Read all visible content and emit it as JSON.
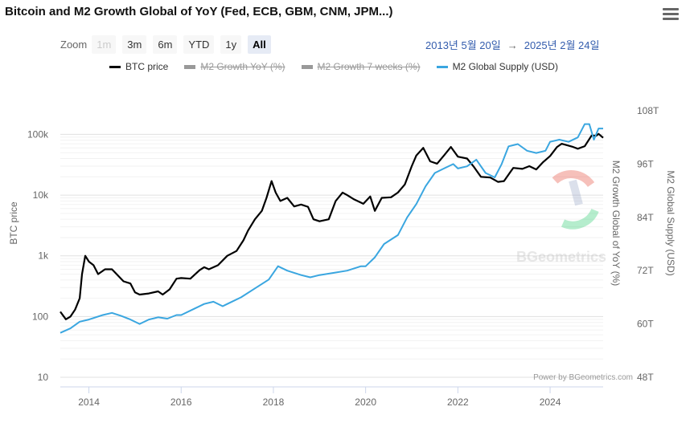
{
  "header": {
    "title": "Bitcoin and M2 Growth Global of YoY (Fed, ECB, GBM, CNM, JPM...)"
  },
  "zoom": {
    "label": "Zoom",
    "buttons": [
      "1m",
      "3m",
      "6m",
      "YTD",
      "1y",
      "All"
    ],
    "active": "All"
  },
  "range": {
    "from": "2013년 5월 20일",
    "arrow": "→",
    "to": "2025년 2월 24일"
  },
  "legend": [
    {
      "name": "BTC price",
      "color": "#000000",
      "visible": true
    },
    {
      "name": "M2 Growth YoY (%)",
      "color": "#999999",
      "visible": false
    },
    {
      "name": "M2 Growth 7 weeks (%)",
      "color": "#999999",
      "visible": false
    },
    {
      "name": "M2 Global Supply (USD)",
      "color": "#3aa6e0",
      "visible": true
    }
  ],
  "watermark": "BGeometrics",
  "credit": "Power by BGeometrics.com",
  "chart_data": {
    "type": "line",
    "x_ticks": [
      "2014",
      "2016",
      "2018",
      "2020",
      "2022",
      "2024"
    ],
    "x_range": [
      2013.38,
      2025.15
    ],
    "left_axis": {
      "title": "BTC price",
      "scale": "log",
      "ticks": [
        "10",
        "100",
        "1k",
        "10k",
        "100k"
      ],
      "range": [
        10,
        170000
      ]
    },
    "right_axis_1": {
      "title": "M2 Growth Global of YoY (%)"
    },
    "right_axis_2": {
      "title": "M2 Global Supply (USD)",
      "ticks": [
        "48T",
        "60T",
        "72T",
        "84T",
        "96T",
        "108T"
      ],
      "range": [
        48,
        108
      ]
    },
    "grid": true,
    "series": [
      {
        "name": "BTC price",
        "axis": "left",
        "color": "#000000",
        "points": [
          [
            2013.38,
            120
          ],
          [
            2013.5,
            90
          ],
          [
            2013.6,
            100
          ],
          [
            2013.7,
            130
          ],
          [
            2013.8,
            200
          ],
          [
            2013.85,
            500
          ],
          [
            2013.92,
            1000
          ],
          [
            2014.0,
            800
          ],
          [
            2014.1,
            700
          ],
          [
            2014.2,
            500
          ],
          [
            2014.35,
            600
          ],
          [
            2014.5,
            600
          ],
          [
            2014.6,
            500
          ],
          [
            2014.75,
            380
          ],
          [
            2014.9,
            350
          ],
          [
            2015.0,
            250
          ],
          [
            2015.1,
            230
          ],
          [
            2015.3,
            240
          ],
          [
            2015.5,
            260
          ],
          [
            2015.6,
            230
          ],
          [
            2015.75,
            280
          ],
          [
            2015.9,
            420
          ],
          [
            2016.0,
            430
          ],
          [
            2016.2,
            420
          ],
          [
            2016.4,
            580
          ],
          [
            2016.5,
            650
          ],
          [
            2016.6,
            600
          ],
          [
            2016.8,
            700
          ],
          [
            2017.0,
            1000
          ],
          [
            2017.2,
            1200
          ],
          [
            2017.35,
            1800
          ],
          [
            2017.45,
            2600
          ],
          [
            2017.6,
            4000
          ],
          [
            2017.75,
            5500
          ],
          [
            2017.85,
            9000
          ],
          [
            2017.96,
            17000
          ],
          [
            2018.05,
            11000
          ],
          [
            2018.15,
            8000
          ],
          [
            2018.3,
            9000
          ],
          [
            2018.45,
            6500
          ],
          [
            2018.6,
            7000
          ],
          [
            2018.75,
            6400
          ],
          [
            2018.87,
            4000
          ],
          [
            2019.0,
            3700
          ],
          [
            2019.2,
            4000
          ],
          [
            2019.35,
            8000
          ],
          [
            2019.5,
            11000
          ],
          [
            2019.6,
            10000
          ],
          [
            2019.75,
            8500
          ],
          [
            2019.95,
            7200
          ],
          [
            2020.1,
            9500
          ],
          [
            2020.2,
            5500
          ],
          [
            2020.35,
            9000
          ],
          [
            2020.55,
            9200
          ],
          [
            2020.7,
            11000
          ],
          [
            2020.85,
            15000
          ],
          [
            2021.0,
            30000
          ],
          [
            2021.1,
            45000
          ],
          [
            2021.25,
            60000
          ],
          [
            2021.4,
            36000
          ],
          [
            2021.55,
            33000
          ],
          [
            2021.7,
            45000
          ],
          [
            2021.85,
            62000
          ],
          [
            2022.0,
            43000
          ],
          [
            2022.2,
            40000
          ],
          [
            2022.35,
            29000
          ],
          [
            2022.5,
            20000
          ],
          [
            2022.7,
            19500
          ],
          [
            2022.87,
            16500
          ],
          [
            2023.0,
            17000
          ],
          [
            2023.2,
            28000
          ],
          [
            2023.4,
            27000
          ],
          [
            2023.55,
            30000
          ],
          [
            2023.7,
            26500
          ],
          [
            2023.85,
            35000
          ],
          [
            2024.0,
            44000
          ],
          [
            2024.15,
            62000
          ],
          [
            2024.25,
            70000
          ],
          [
            2024.5,
            62000
          ],
          [
            2024.6,
            58000
          ],
          [
            2024.75,
            64000
          ],
          [
            2024.9,
            96000
          ],
          [
            2025.0,
            95000
          ],
          [
            2025.05,
            102000
          ],
          [
            2025.15,
            88000
          ]
        ]
      },
      {
        "name": "M2 Global Supply (USD)",
        "axis": "right",
        "color": "#3aa6e0",
        "points": [
          [
            2013.38,
            58
          ],
          [
            2013.6,
            59
          ],
          [
            2013.8,
            60.5
          ],
          [
            2014.0,
            61
          ],
          [
            2014.3,
            62
          ],
          [
            2014.5,
            62.5
          ],
          [
            2014.7,
            61.8
          ],
          [
            2014.9,
            61
          ],
          [
            2015.1,
            60
          ],
          [
            2015.3,
            61
          ],
          [
            2015.5,
            61.5
          ],
          [
            2015.7,
            61.2
          ],
          [
            2015.9,
            62
          ],
          [
            2016.0,
            62
          ],
          [
            2016.3,
            63.5
          ],
          [
            2016.5,
            64.5
          ],
          [
            2016.7,
            65
          ],
          [
            2016.9,
            64
          ],
          [
            2017.0,
            64.5
          ],
          [
            2017.3,
            66
          ],
          [
            2017.6,
            68
          ],
          [
            2017.9,
            70
          ],
          [
            2018.1,
            73
          ],
          [
            2018.3,
            72
          ],
          [
            2018.6,
            71
          ],
          [
            2018.8,
            70.5
          ],
          [
            2019.0,
            71
          ],
          [
            2019.3,
            71.5
          ],
          [
            2019.6,
            72
          ],
          [
            2019.9,
            73
          ],
          [
            2020.0,
            73
          ],
          [
            2020.2,
            75
          ],
          [
            2020.4,
            78
          ],
          [
            2020.7,
            80
          ],
          [
            2020.9,
            84
          ],
          [
            2021.1,
            87
          ],
          [
            2021.3,
            91
          ],
          [
            2021.5,
            94
          ],
          [
            2021.7,
            95
          ],
          [
            2021.9,
            96
          ],
          [
            2022.0,
            95
          ],
          [
            2022.2,
            95.5
          ],
          [
            2022.4,
            97
          ],
          [
            2022.6,
            94
          ],
          [
            2022.8,
            93
          ],
          [
            2022.95,
            96
          ],
          [
            2023.1,
            100
          ],
          [
            2023.3,
            100.5
          ],
          [
            2023.5,
            99
          ],
          [
            2023.7,
            98.5
          ],
          [
            2023.9,
            99
          ],
          [
            2024.0,
            101
          ],
          [
            2024.2,
            101.5
          ],
          [
            2024.4,
            101
          ],
          [
            2024.6,
            102
          ],
          [
            2024.75,
            105
          ],
          [
            2024.85,
            105
          ],
          [
            2024.95,
            101.5
          ],
          [
            2025.05,
            104
          ],
          [
            2025.15,
            104
          ]
        ]
      }
    ]
  }
}
